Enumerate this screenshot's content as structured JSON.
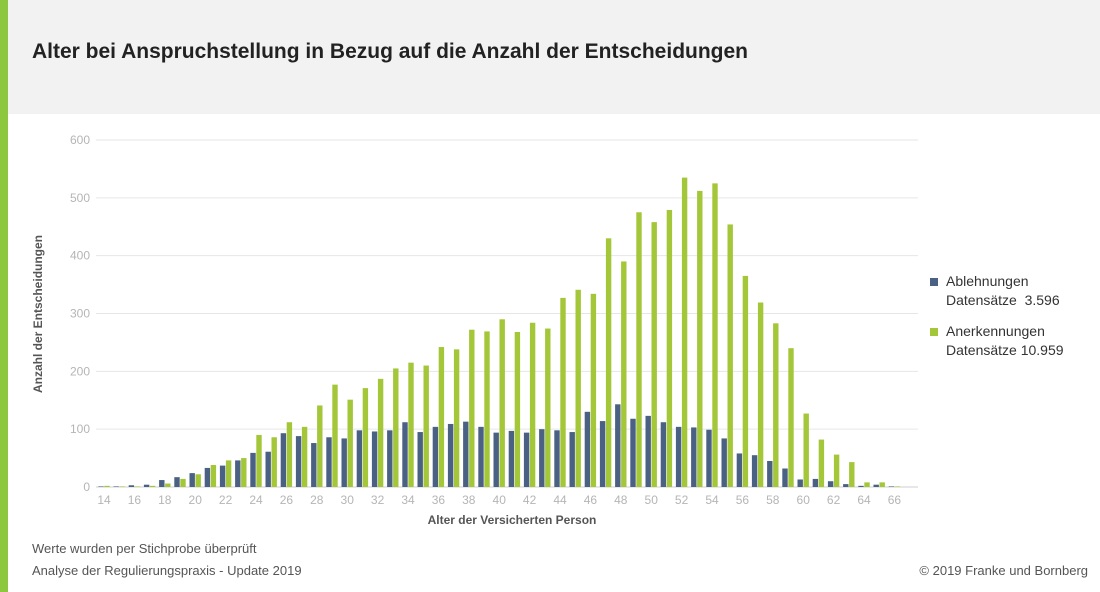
{
  "colors": {
    "accent": "#8dc63f",
    "header_bg": "#f2f2f2",
    "rejections": "#4a6184",
    "acceptances": "#a4c639",
    "grid": "#e6e6e6",
    "tick_text": "#b5b5b5"
  },
  "header": {
    "title": "Alter bei Anspruchstellung in Bezug auf die Anzahl der Entscheidungen"
  },
  "legend": [
    {
      "label": "Ablehnungen",
      "records": "Datensätze  3.596"
    },
    {
      "label": "Anerkennungen",
      "records": "Datensätze 10.959"
    }
  ],
  "footer": {
    "note1": "Werte wurden per Stichprobe überprüft",
    "note2": "Analyse der Regulierungspraxis - Update 2019",
    "copyright": "© 2019 Franke und Bornberg"
  },
  "chart_data": {
    "type": "bar",
    "xlabel": "Alter der Versicherten Person",
    "ylabel": "Anzahl der Entscheidungen",
    "ylim": [
      0,
      600
    ],
    "yticks": [
      0,
      100,
      200,
      300,
      400,
      500,
      600
    ],
    "grid": true,
    "legend_position": "right",
    "categories": [
      14,
      15,
      16,
      17,
      18,
      19,
      20,
      21,
      22,
      23,
      24,
      25,
      26,
      27,
      28,
      29,
      30,
      31,
      32,
      33,
      34,
      35,
      36,
      37,
      38,
      39,
      40,
      41,
      42,
      43,
      44,
      45,
      46,
      47,
      48,
      49,
      50,
      51,
      52,
      53,
      54,
      55,
      56,
      57,
      58,
      59,
      60,
      61,
      62,
      63,
      64,
      65,
      66
    ],
    "tick_labels": [
      "14",
      "16",
      "18",
      "20",
      "22",
      "24",
      "26",
      "28",
      "30",
      "32",
      "34",
      "36",
      "38",
      "40",
      "42",
      "44",
      "46",
      "48",
      "50",
      "52",
      "54",
      "56",
      "58",
      "60",
      "62",
      "64",
      "66"
    ],
    "series": [
      {
        "name": "Ablehnungen",
        "values": [
          1,
          1,
          3,
          4,
          12,
          17,
          24,
          33,
          37,
          46,
          59,
          61,
          93,
          88,
          76,
          86,
          84,
          98,
          96,
          98,
          112,
          95,
          104,
          109,
          113,
          104,
          94,
          97,
          94,
          100,
          98,
          95,
          130,
          114,
          143,
          118,
          123,
          112,
          104,
          103,
          99,
          84,
          58,
          55,
          45,
          32,
          13,
          14,
          10,
          5,
          2,
          4,
          1
        ]
      },
      {
        "name": "Anerkennungen",
        "values": [
          2,
          1,
          1,
          2,
          6,
          14,
          22,
          38,
          46,
          50,
          90,
          86,
          112,
          104,
          141,
          177,
          151,
          171,
          187,
          205,
          215,
          210,
          242,
          238,
          272,
          269,
          290,
          268,
          284,
          274,
          327,
          341,
          334,
          430,
          390,
          475,
          458,
          479,
          535,
          512,
          525,
          454,
          365,
          319,
          283,
          240,
          127,
          82,
          56,
          43,
          8,
          8,
          1
        ]
      }
    ]
  }
}
